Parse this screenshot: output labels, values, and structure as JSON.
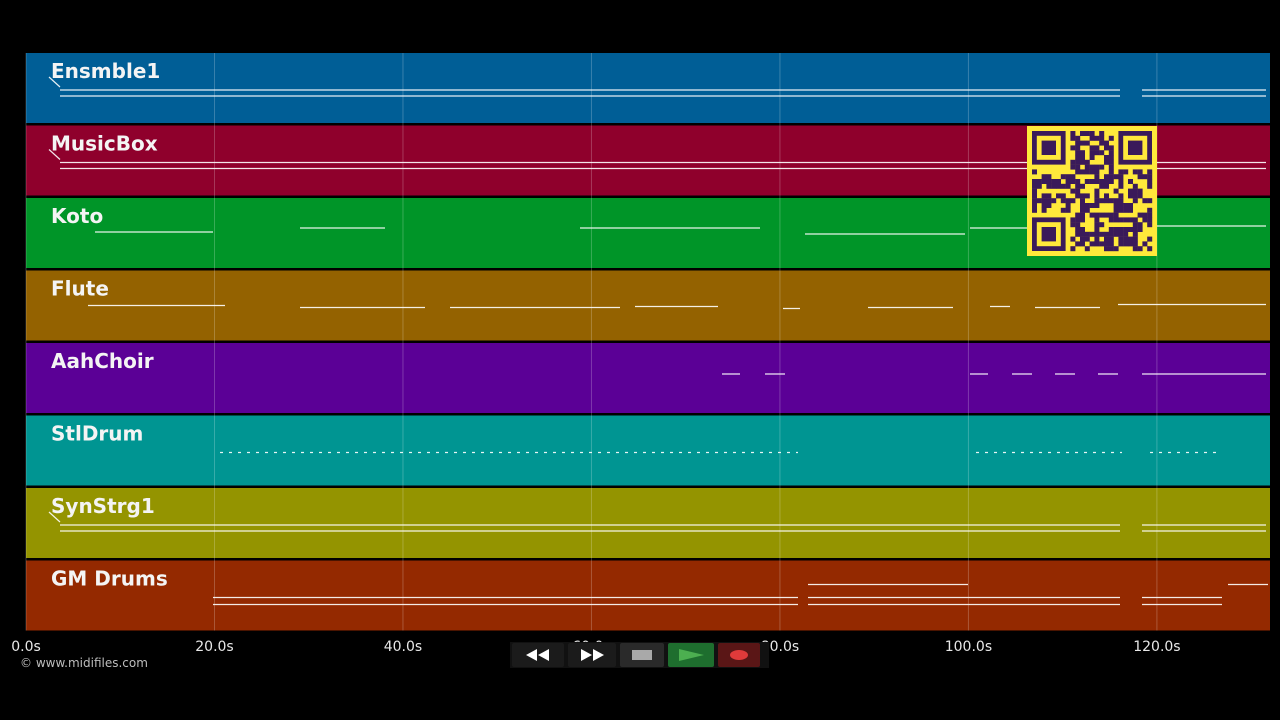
{
  "tracks": [
    {
      "name": "Ensmble1",
      "color": "#005e96"
    },
    {
      "name": "MusicBox",
      "color": "#8f002c"
    },
    {
      "name": "Koto",
      "color": "#009528"
    },
    {
      "name": "Flute",
      "color": "#946200"
    },
    {
      "name": "AahChoir",
      "color": "#5b0096"
    },
    {
      "name": "StlDrum",
      "color": "#009592"
    },
    {
      "name": "SynStrg1",
      "color": "#949400"
    },
    {
      "name": "GM Drums",
      "color": "#942900"
    }
  ],
  "time_axis": {
    "tick_labels": [
      "0.0s",
      "20.0s",
      "40.0s",
      "60.0s",
      "80.0s",
      "100.0s",
      "120.0s"
    ],
    "tick_values": [
      0,
      20,
      40,
      60,
      80,
      100,
      120
    ],
    "range": [
      0,
      132
    ]
  },
  "copyright": "© www.midifiles.com",
  "transport": {
    "rewind_icon": "rewind-icon",
    "forward_icon": "fast-forward-icon",
    "stop_icon": "stop-icon",
    "play_icon": "play-icon",
    "record_icon": "record-icon",
    "play_color": "#4caf50",
    "record_color": "#e03a3a"
  },
  "qr_code": {
    "fg": "#3a1a5a",
    "bg": "#ffe93b"
  }
}
